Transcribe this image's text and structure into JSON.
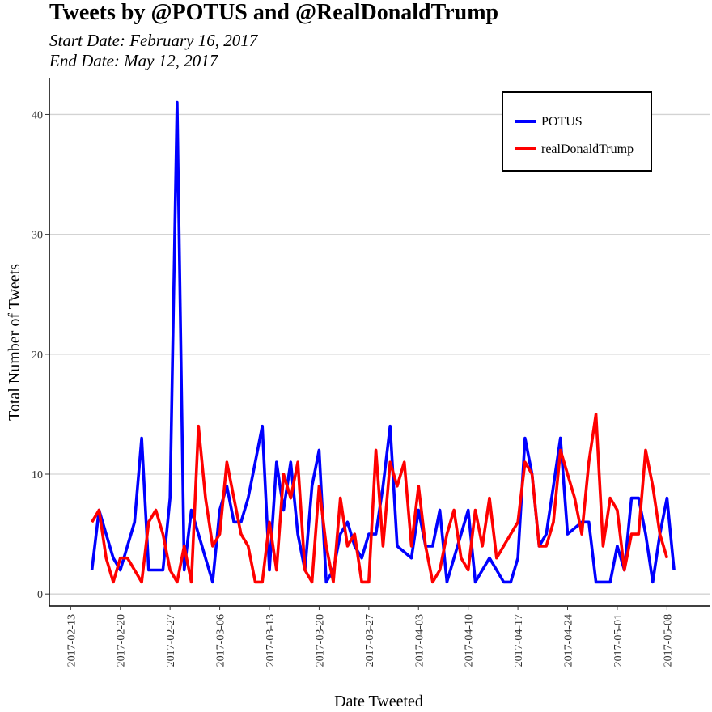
{
  "chart_data": {
    "type": "line",
    "title": "Tweets by @POTUS and @RealDonaldTrump",
    "subtitle_lines": [
      "Start Date:  February 16, 2017",
      "End Date:  May 12, 2017"
    ],
    "xlabel": "Date Tweeted",
    "ylabel": "Total Number of Tweets",
    "x_ticks": [
      "2017-02-13",
      "2017-02-20",
      "2017-02-27",
      "2017-03-06",
      "2017-03-13",
      "2017-03-20",
      "2017-03-27",
      "2017-04-03",
      "2017-04-10",
      "2017-04-17",
      "2017-04-24",
      "2017-05-01",
      "2017-05-08"
    ],
    "xlim": [
      "2017-02-10",
      "2017-05-14"
    ],
    "y_ticks": [
      0,
      10,
      20,
      30,
      40
    ],
    "ylim": [
      -1,
      43
    ],
    "grid": "horizontal major",
    "legend_position": "top-right",
    "series": [
      {
        "name": "POTUS",
        "color": "#0000ff",
        "start_date": "2017-02-16",
        "values": [
          2,
          7,
          5,
          3,
          2,
          4,
          6,
          13,
          2,
          2,
          2,
          8,
          41,
          2,
          7,
          5,
          3,
          1,
          7,
          9,
          6,
          6,
          8,
          11,
          14,
          2,
          11,
          7,
          11,
          5,
          2,
          9,
          12,
          1,
          2,
          5,
          6,
          4,
          3,
          5,
          5,
          9,
          14,
          4,
          3.5,
          3,
          7,
          4,
          4,
          7,
          1,
          3,
          5,
          7,
          1,
          2,
          3,
          2,
          1,
          1,
          3,
          13,
          10,
          4,
          5,
          9,
          13,
          5,
          5.5,
          6,
          6,
          1,
          1,
          1,
          4,
          2,
          8,
          8,
          5,
          1,
          5,
          8,
          2
        ]
      },
      {
        "name": "realDonaldTrump",
        "color": "#ff0000",
        "start_date": "2017-02-16",
        "values": [
          6,
          7,
          3,
          1,
          3,
          3,
          2,
          1,
          6,
          7,
          5,
          2,
          1,
          4,
          1,
          14,
          8,
          4,
          5,
          11,
          8,
          5,
          4,
          1,
          1,
          6,
          2,
          10,
          8,
          11,
          2,
          1,
          9,
          4,
          1,
          8,
          4,
          5,
          1,
          1,
          12,
          4,
          11,
          9,
          11,
          4,
          9,
          4,
          1,
          2,
          5,
          7,
          3,
          2,
          7,
          4,
          8,
          3,
          4,
          5,
          6,
          11,
          10,
          4,
          4,
          6,
          12,
          10,
          8,
          5,
          11,
          15,
          4,
          8,
          7,
          2,
          5,
          5,
          12,
          9,
          5,
          3
        ]
      }
    ]
  }
}
